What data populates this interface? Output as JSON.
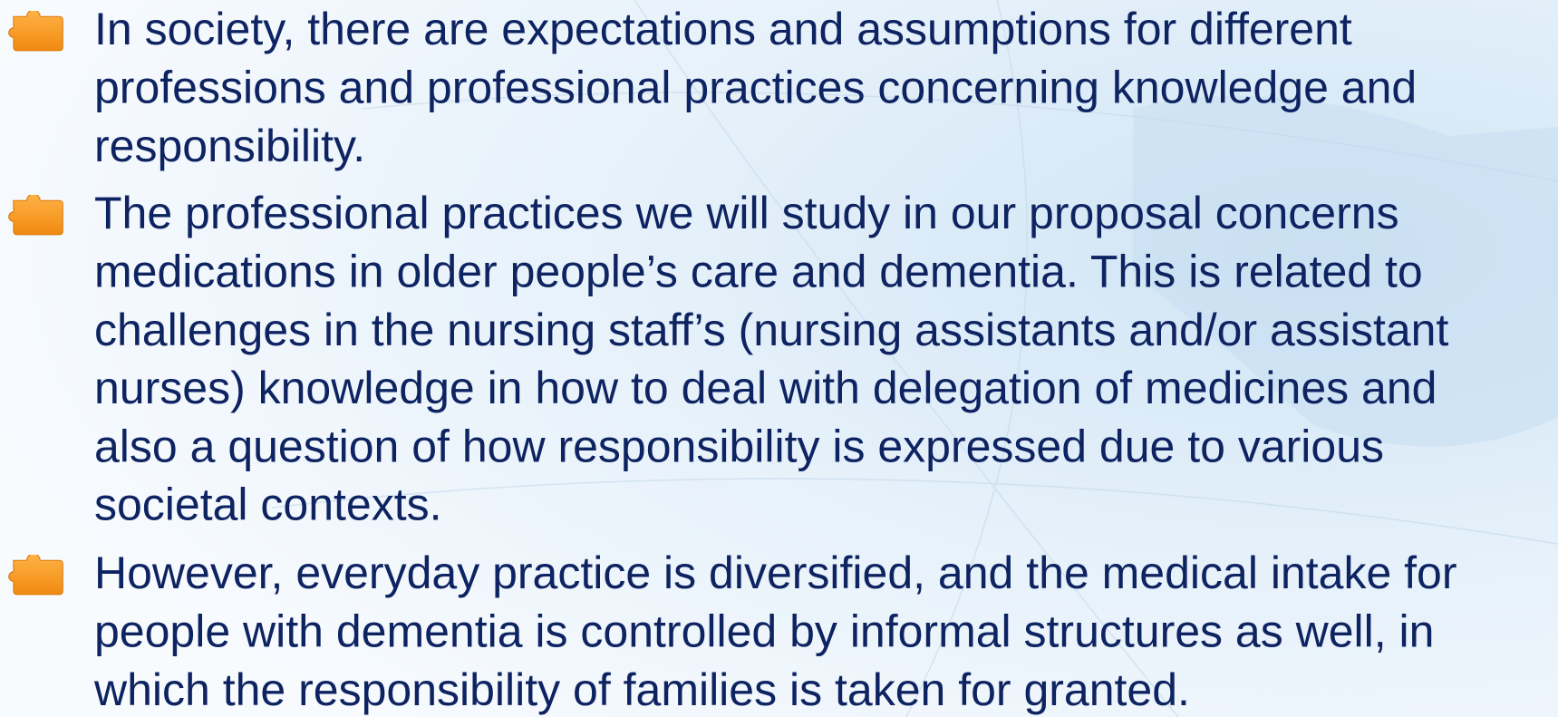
{
  "bullets": [
    {
      "lines": [
        "In society, there are expectations and assumptions for different",
        "professions and professional practices concerning knowledge and",
        "responsibility."
      ]
    },
    {
      "lines": [
        "The professional practices we will study in our proposal concerns",
        "medications in older people’s care and dementia. This is related to",
        "challenges in the nursing staff’s (nursing assistants and/or assistant",
        "nurses) knowledge in how to deal with delegation of medicines and",
        "also a question of how responsibility is expressed due to various",
        "societal contexts."
      ]
    },
    {
      "lines": [
        "However, everyday practice is diversified, and the medical intake for",
        "people with dementia is controlled by informal structures as well, in",
        "which the responsibility of families is taken for granted."
      ]
    }
  ]
}
